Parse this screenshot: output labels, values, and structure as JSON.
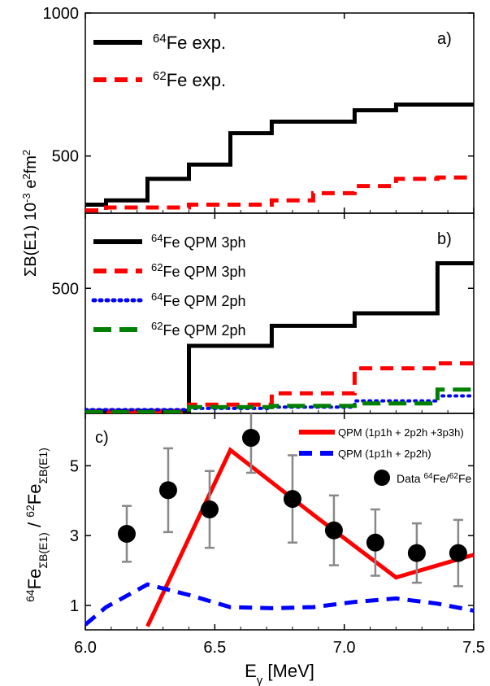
{
  "x_axis": {
    "label_main": "E",
    "label_sub": "γ",
    "label_unit": " [MeV]",
    "ticks": [
      6.0,
      6.5,
      7.0,
      7.5
    ],
    "tick_labels": [
      "6.0",
      "6.5",
      "7.0",
      "7.5"
    ],
    "range": [
      6.0,
      7.5
    ]
  },
  "shared_ylabel": {
    "sigma": "ΣB(E1) 10",
    "exp": "-3",
    "unit": " e",
    "e_exp": "2",
    "fm": "fm",
    "fm_exp": "2"
  },
  "colors": {
    "black": "#000000",
    "red": "#ff0000",
    "blue": "#0000ff",
    "green": "#008000",
    "grey": "#888888"
  },
  "chart_data": [
    {
      "panel": "a)",
      "type": "line",
      "step": true,
      "ylim": [
        300,
        1000
      ],
      "ticks": [
        500,
        1000
      ],
      "tick_labels": [
        "500",
        "1000"
      ],
      "series": [
        {
          "name_sup": "64",
          "name_rest": "Fe exp.",
          "color": "#000000",
          "style": "solid",
          "x": [
            6.0,
            6.08,
            6.08,
            6.24,
            6.24,
            6.4,
            6.4,
            6.56,
            6.56,
            6.72,
            6.72,
            7.04,
            7.04,
            7.2,
            7.2,
            7.5
          ],
          "y": [
            330,
            330,
            345,
            345,
            420,
            420,
            470,
            470,
            580,
            580,
            620,
            620,
            660,
            660,
            680,
            680
          ]
        },
        {
          "name_sup": "62",
          "name_rest": "Fe exp.",
          "color": "#ff0000",
          "style": "dashed",
          "x": [
            6.0,
            6.08,
            6.08,
            6.4,
            6.4,
            6.72,
            6.72,
            6.88,
            6.88,
            7.04,
            7.04,
            7.2,
            7.2,
            7.36,
            7.36,
            7.5
          ],
          "y": [
            310,
            310,
            320,
            320,
            330,
            330,
            345,
            345,
            370,
            370,
            395,
            395,
            420,
            420,
            425,
            425
          ]
        }
      ]
    },
    {
      "panel": "b)",
      "type": "line",
      "step": true,
      "ylim": [
        0,
        800
      ],
      "ticks": [
        500
      ],
      "tick_labels": [
        "500"
      ],
      "series": [
        {
          "name_sup": "64",
          "name_rest": "Fe QPM 3ph",
          "color": "#000000",
          "style": "solid",
          "x": [
            6.0,
            6.4,
            6.4,
            6.72,
            6.72,
            7.04,
            7.04,
            7.36,
            7.36,
            7.5
          ],
          "y": [
            10,
            10,
            270,
            270,
            350,
            350,
            400,
            400,
            600,
            600
          ]
        },
        {
          "name_sup": "62",
          "name_rest": "Fe QPM 3ph",
          "color": "#ff0000",
          "style": "dashed",
          "x": [
            6.0,
            6.4,
            6.4,
            6.72,
            6.72,
            7.04,
            7.04,
            7.36,
            7.36,
            7.5
          ],
          "y": [
            8,
            8,
            35,
            35,
            80,
            80,
            180,
            180,
            200,
            200
          ]
        },
        {
          "name_sup": "64",
          "name_rest": "Fe QPM 2ph",
          "color": "#0000ff",
          "style": "dotted",
          "x": [
            6.0,
            6.4,
            6.4,
            6.72,
            6.72,
            7.04,
            7.04,
            7.36,
            7.36,
            7.5
          ],
          "y": [
            15,
            15,
            20,
            20,
            25,
            25,
            50,
            50,
            70,
            70
          ]
        },
        {
          "name_sup": "62",
          "name_rest": "Fe QPM 2ph",
          "color": "#008000",
          "style": "longdash",
          "x": [
            6.0,
            6.4,
            6.4,
            6.72,
            6.72,
            7.04,
            7.04,
            7.36,
            7.36,
            7.5
          ],
          "y": [
            5,
            5,
            25,
            25,
            30,
            30,
            40,
            40,
            95,
            95
          ]
        }
      ]
    },
    {
      "panel": "c)",
      "type": "line",
      "ylim": [
        0.3,
        6.5
      ],
      "ticks": [
        1,
        3,
        5
      ],
      "tick_labels": [
        "1",
        "3",
        "5"
      ],
      "ylabel_parts": [
        "64",
        "Fe",
        "ΣB(E1)",
        " / ",
        "62",
        "Fe",
        "ΣB(E1)"
      ],
      "series": [
        {
          "name": "QPM (1p1h + 2p2h +3p3h)",
          "color": "#ff0000",
          "style": "solid",
          "x": [
            6.24,
            6.56,
            6.88,
            7.2,
            7.5
          ],
          "y": [
            0.4,
            5.45,
            3.6,
            1.8,
            2.45
          ]
        },
        {
          "name": "QPM (1p1h + 2p2h)",
          "color": "#0000ff",
          "style": "dashed",
          "x": [
            6.0,
            6.08,
            6.24,
            6.4,
            6.56,
            6.72,
            6.88,
            7.04,
            7.2,
            7.36,
            7.5
          ],
          "y": [
            0.45,
            0.95,
            1.6,
            1.3,
            0.95,
            0.92,
            0.95,
            1.1,
            1.2,
            1.05,
            0.85
          ]
        },
        {
          "name_pre": "Data ",
          "name_sup1": "64",
          "name_mid": "Fe/",
          "name_sup2": "62",
          "name_post": "Fe",
          "type": "scatter",
          "color": "#000000",
          "err_color": "#888888",
          "x": [
            6.16,
            6.32,
            6.48,
            6.64,
            6.8,
            6.96,
            7.12,
            7.28,
            7.44
          ],
          "y": [
            3.05,
            4.3,
            3.75,
            5.8,
            4.05,
            3.15,
            2.8,
            2.5,
            2.5
          ],
          "err": [
            0.8,
            1.2,
            1.1,
            1.0,
            1.25,
            1.0,
            0.95,
            0.85,
            0.95
          ]
        }
      ]
    }
  ]
}
